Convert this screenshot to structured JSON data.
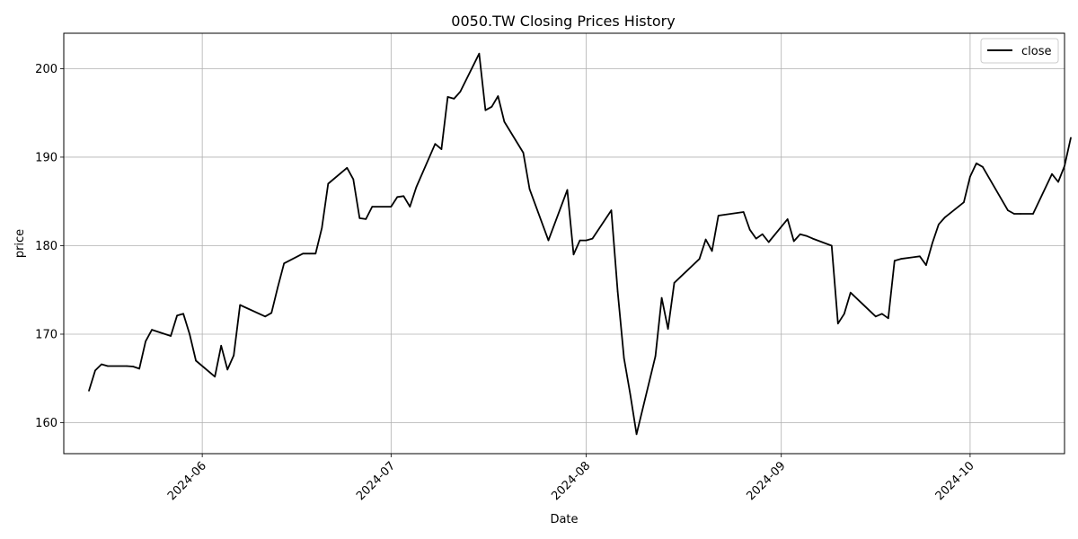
{
  "chart_data": {
    "type": "line",
    "title": "0050.TW Closing Prices History",
    "xlabel": "Date",
    "ylabel": "price",
    "x_axis": "date",
    "xlim": [
      "2024-05-10",
      "2024-10-16"
    ],
    "ylim": [
      156.5,
      204
    ],
    "x_ticks": [
      "2024-06",
      "2024-07",
      "2024-08",
      "2024-09",
      "2024-10"
    ],
    "x_tick_dates": [
      "2024-06-01",
      "2024-07-01",
      "2024-08-01",
      "2024-09-01",
      "2024-10-01"
    ],
    "y_ticks": [
      160,
      170,
      180,
      190,
      200
    ],
    "grid": true,
    "legend": "top-right",
    "color": "#000000",
    "series": [
      {
        "name": "close",
        "points": [
          [
            "2024-05-14",
            163.6
          ],
          [
            "2024-05-15",
            165.9
          ],
          [
            "2024-05-16",
            166.6
          ],
          [
            "2024-05-17",
            166.4
          ],
          [
            "2024-05-20",
            166.4
          ],
          [
            "2024-05-21",
            166.35
          ],
          [
            "2024-05-22",
            166.1
          ],
          [
            "2024-05-23",
            169.2
          ],
          [
            "2024-05-24",
            170.5
          ],
          [
            "2024-05-27",
            169.8
          ],
          [
            "2024-05-28",
            172.1
          ],
          [
            "2024-05-29",
            172.3
          ],
          [
            "2024-05-30",
            170.0
          ],
          [
            "2024-05-31",
            167.0
          ],
          [
            "2024-06-03",
            165.2
          ],
          [
            "2024-06-04",
            168.7
          ],
          [
            "2024-06-05",
            166.0
          ],
          [
            "2024-06-06",
            167.6
          ],
          [
            "2024-06-07",
            173.3
          ],
          [
            "2024-06-11",
            172.0
          ],
          [
            "2024-06-12",
            172.4
          ],
          [
            "2024-06-13",
            175.3
          ],
          [
            "2024-06-14",
            178.0
          ],
          [
            "2024-06-17",
            179.1
          ],
          [
            "2024-06-18",
            179.1
          ],
          [
            "2024-06-19",
            179.1
          ],
          [
            "2024-06-20",
            182.0
          ],
          [
            "2024-06-21",
            187.0
          ],
          [
            "2024-06-24",
            188.8
          ],
          [
            "2024-06-25",
            187.5
          ],
          [
            "2024-06-26",
            183.1
          ],
          [
            "2024-06-27",
            183.0
          ],
          [
            "2024-06-28",
            184.4
          ],
          [
            "2024-07-01",
            184.4
          ],
          [
            "2024-07-02",
            185.5
          ],
          [
            "2024-07-03",
            185.6
          ],
          [
            "2024-07-04",
            184.4
          ],
          [
            "2024-07-05",
            186.6
          ],
          [
            "2024-07-08",
            191.5
          ],
          [
            "2024-07-09",
            190.9
          ],
          [
            "2024-07-10",
            196.8
          ],
          [
            "2024-07-11",
            196.6
          ],
          [
            "2024-07-12",
            197.4
          ],
          [
            "2024-07-15",
            201.7
          ],
          [
            "2024-07-16",
            195.3
          ],
          [
            "2024-07-17",
            195.7
          ],
          [
            "2024-07-18",
            196.9
          ],
          [
            "2024-07-19",
            194.0
          ],
          [
            "2024-07-22",
            190.5
          ],
          [
            "2024-07-23",
            186.4
          ],
          [
            "2024-07-26",
            180.6
          ],
          [
            "2024-07-29",
            186.3
          ],
          [
            "2024-07-30",
            179.0
          ],
          [
            "2024-07-31",
            180.6
          ],
          [
            "2024-08-01",
            180.6
          ],
          [
            "2024-08-02",
            180.8
          ],
          [
            "2024-08-05",
            184.0
          ],
          [
            "2024-08-06",
            174.8
          ],
          [
            "2024-08-07",
            167.3
          ],
          [
            "2024-08-08",
            163.2
          ],
          [
            "2024-08-09",
            158.7
          ],
          [
            "2024-08-12",
            167.5
          ],
          [
            "2024-08-13",
            174.1
          ],
          [
            "2024-08-14",
            170.6
          ],
          [
            "2024-08-15",
            175.8
          ],
          [
            "2024-08-19",
            178.5
          ],
          [
            "2024-08-20",
            180.7
          ],
          [
            "2024-08-21",
            179.4
          ],
          [
            "2024-08-22",
            183.4
          ],
          [
            "2024-08-26",
            183.8
          ],
          [
            "2024-08-27",
            181.8
          ],
          [
            "2024-08-28",
            180.8
          ],
          [
            "2024-08-29",
            181.3
          ],
          [
            "2024-08-30",
            180.4
          ],
          [
            "2024-09-02",
            183.0
          ],
          [
            "2024-09-03",
            180.5
          ],
          [
            "2024-09-04",
            181.3
          ],
          [
            "2024-09-05",
            181.1
          ],
          [
            "2024-09-06",
            180.8
          ],
          [
            "2024-09-09",
            180.0
          ],
          [
            "2024-09-10",
            171.2
          ],
          [
            "2024-09-11",
            172.3
          ],
          [
            "2024-09-12",
            174.7
          ],
          [
            "2024-09-16",
            172.0
          ],
          [
            "2024-09-17",
            172.3
          ],
          [
            "2024-09-18",
            171.8
          ],
          [
            "2024-09-19",
            178.3
          ],
          [
            "2024-09-20",
            178.5
          ],
          [
            "2024-09-23",
            178.8
          ],
          [
            "2024-09-24",
            177.8
          ],
          [
            "2024-09-25",
            180.3
          ],
          [
            "2024-09-26",
            182.4
          ],
          [
            "2024-09-27",
            183.2
          ],
          [
            "2024-09-30",
            184.9
          ],
          [
            "2024-10-01",
            187.8
          ],
          [
            "2024-10-02",
            189.3
          ],
          [
            "2024-10-03",
            188.9
          ],
          [
            "2024-10-07",
            184.0
          ],
          [
            "2024-10-08",
            183.6
          ],
          [
            "2024-10-09",
            183.6
          ],
          [
            "2024-10-11",
            183.6
          ],
          [
            "2024-10-14",
            188.1
          ],
          [
            "2024-10-15",
            187.2
          ],
          [
            "2024-10-16",
            189.0
          ],
          [
            "2024-10-17",
            192.2
          ]
        ]
      }
    ]
  }
}
